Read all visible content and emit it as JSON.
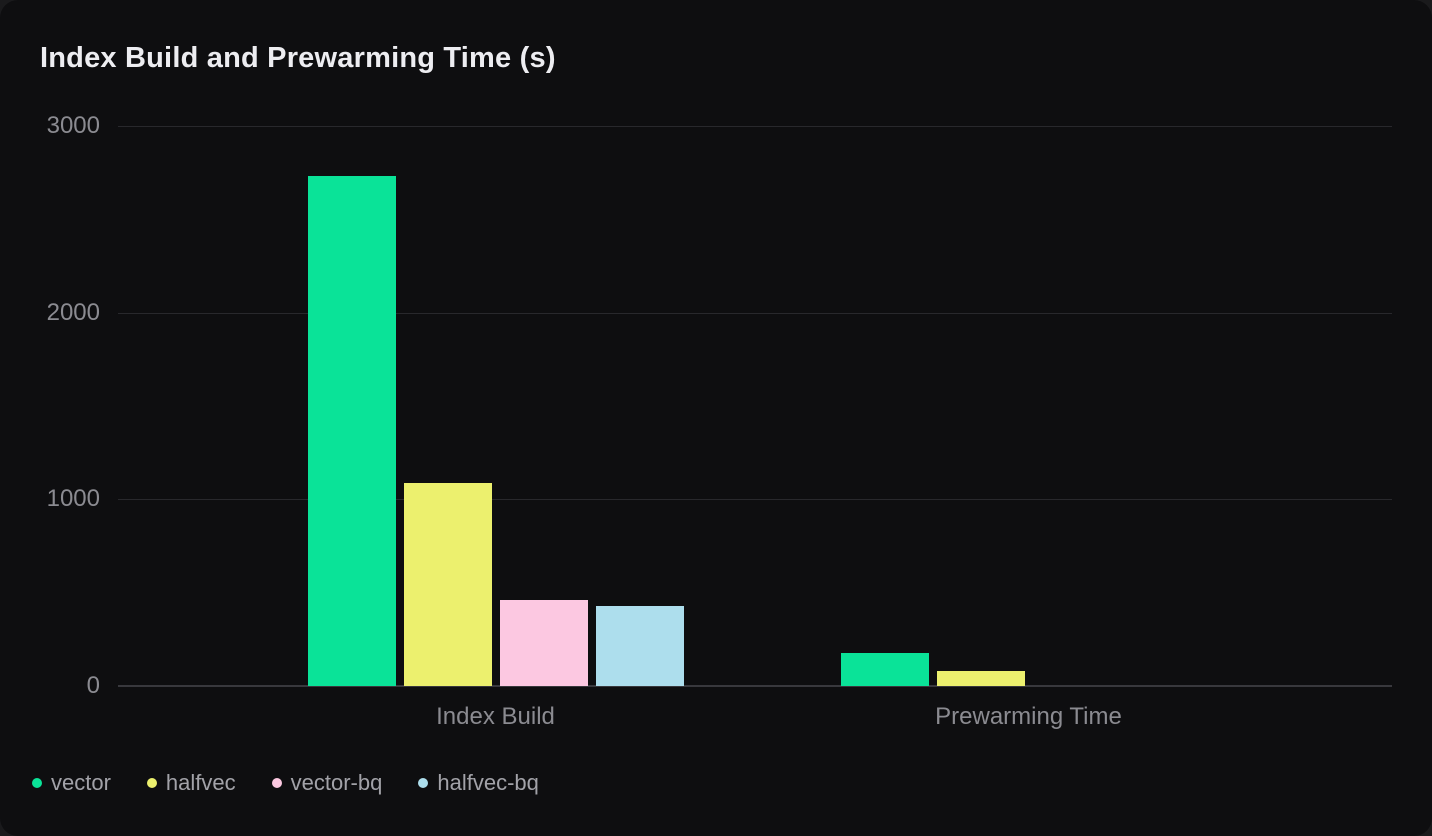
{
  "card": {
    "title": "Index Build and Prewarming Time (s)"
  },
  "chart_data": {
    "type": "bar",
    "title": "Index Build and Prewarming Time (s)",
    "categories": [
      "Index Build",
      "Prewarming Time"
    ],
    "series": [
      {
        "name": "vector",
        "color": "#0ae398",
        "values": [
          2730,
          175
        ]
      },
      {
        "name": "halfvec",
        "color": "#ecf06e",
        "values": [
          1090,
          80
        ]
      },
      {
        "name": "vector-bq",
        "color": "#fcc8e1",
        "values": [
          460,
          0
        ]
      },
      {
        "name": "halfvec-bq",
        "color": "#addeed",
        "values": [
          430,
          0
        ]
      }
    ],
    "xlabel": "",
    "ylabel": "",
    "ylim": [
      0,
      3000
    ],
    "yticks": [
      0,
      1000,
      2000,
      3000
    ],
    "grid": true,
    "legend_position": "bottom-left",
    "background_color": "#0e0e10",
    "text_color": "#8b8b91"
  }
}
